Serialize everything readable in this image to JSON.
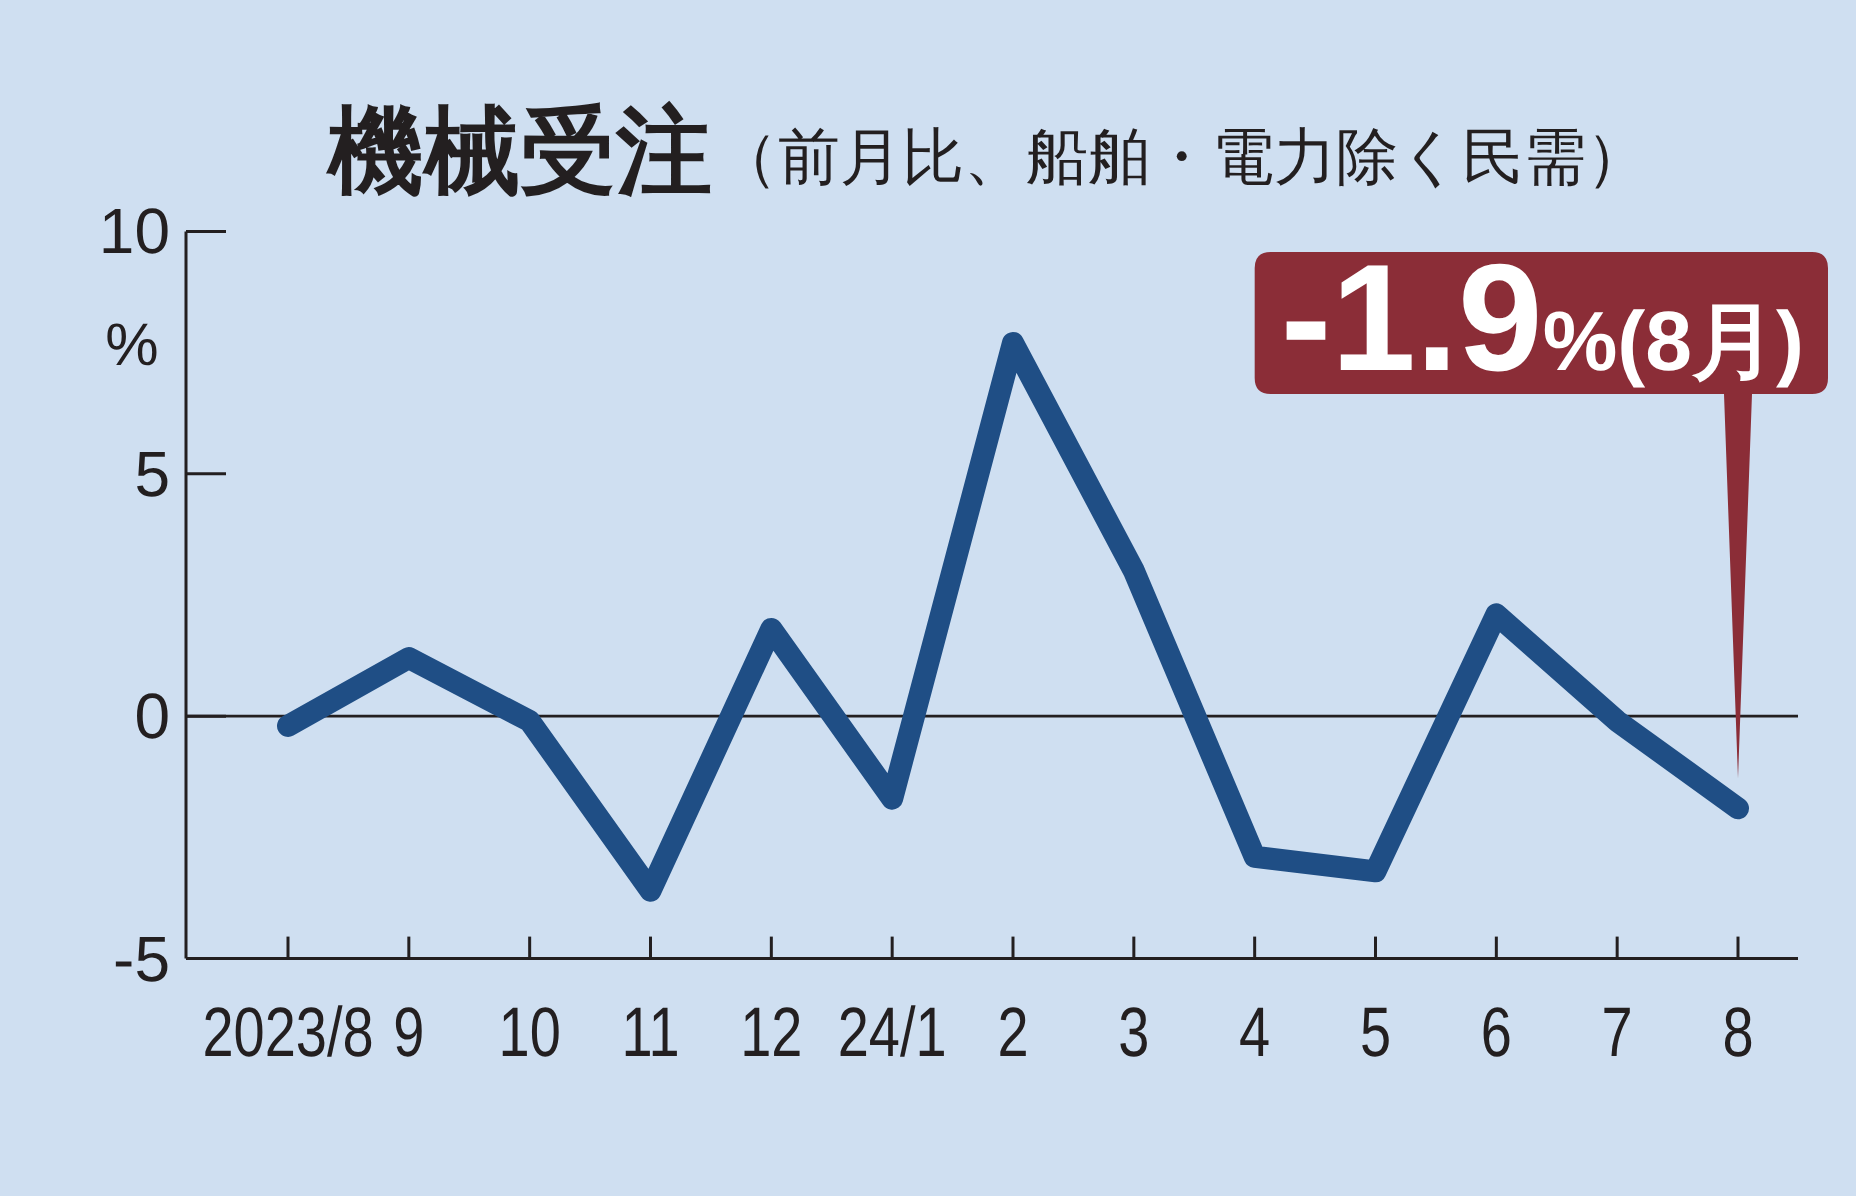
{
  "chart_data": {
    "type": "line",
    "title": "機械受注",
    "subtitle": "（前月比、船舶・電力除く民需）",
    "ylabel": "%",
    "categories": [
      "2023/8",
      "9",
      "10",
      "11",
      "12",
      "24/1",
      "2",
      "3",
      "4",
      "5",
      "6",
      "7",
      "8"
    ],
    "series": [
      {
        "color": "#1f4e85",
        "values": [
          -0.2,
          1.2,
          -0.1,
          -3.6,
          1.8,
          -1.7,
          7.7,
          3.0,
          -2.9,
          -3.2,
          2.1,
          -0.1,
          -1.9
        ]
      }
    ],
    "ylim": [
      -5,
      10
    ],
    "yticks": [
      -5,
      0,
      5,
      10
    ],
    "ref_lines": [
      {
        "axis": "y",
        "value": 0,
        "color": "#231f20"
      }
    ],
    "annotations": [
      {
        "text": "-1.9%(8月)",
        "x": "8",
        "y": -1.9
      }
    ],
    "line_style": "solid"
  }
}
